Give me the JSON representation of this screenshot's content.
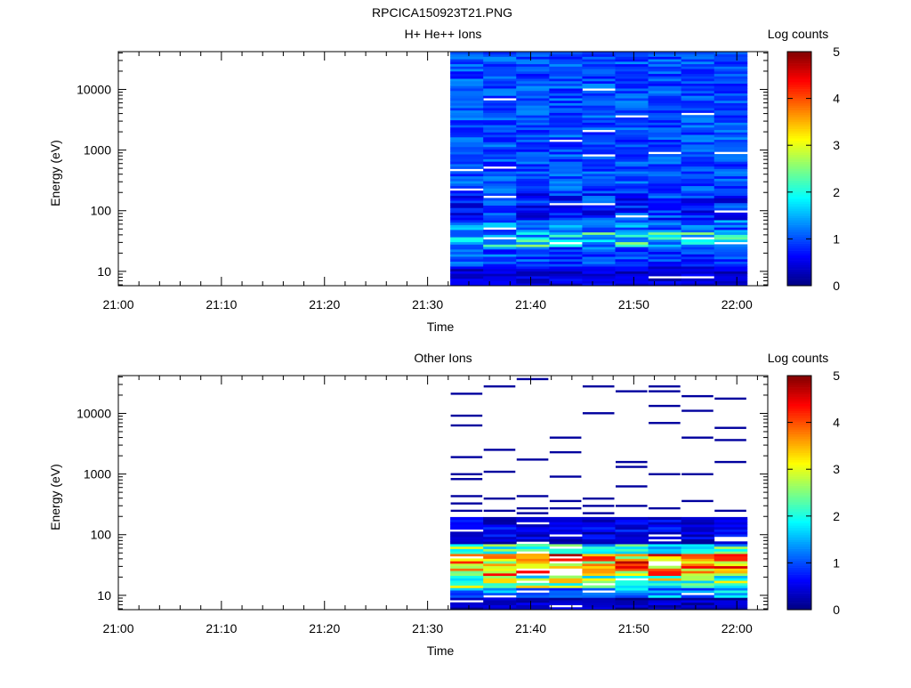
{
  "figure": {
    "title": "RPCICA150923T21.PNG"
  },
  "colors": {
    "axis": "#000000",
    "missing": "#ffffff"
  },
  "chart_data": [
    {
      "type": "heatmap",
      "id": "top",
      "title": "H+ He++ Ions",
      "xlabel": "Time",
      "ylabel": "Energy (eV)",
      "x_ticks": [
        "21:00",
        "21:10",
        "21:20",
        "21:30",
        "21:40",
        "21:50",
        "22:00"
      ],
      "x_tick_minutes": [
        0,
        10,
        20,
        30,
        40,
        50,
        60
      ],
      "xlim_minutes": [
        0,
        63
      ],
      "y_scale": "log",
      "ylim": [
        5.8,
        42000
      ],
      "y_ticks": [
        10,
        100,
        1000,
        10000
      ],
      "y_tick_labels": [
        "10",
        "100",
        "1000",
        "10000"
      ],
      "time_bins_minutes": [
        32.2,
        35.4,
        38.6,
        41.8,
        45.0,
        48.2,
        51.4,
        54.6,
        57.8,
        61.0
      ],
      "colorbar": {
        "label": "Log counts",
        "range": [
          0,
          5
        ],
        "ticks": [
          "0",
          "1",
          "2",
          "3",
          "4",
          "5"
        ]
      },
      "profile": [
        {
          "e_max": 12,
          "mean": 0.45,
          "spread": 0.3
        },
        {
          "e_max": 25,
          "mean": 1.0,
          "spread": 0.45
        },
        {
          "e_max": 45,
          "mean": 1.7,
          "spread": 0.9
        },
        {
          "e_max": 70,
          "mean": 1.2,
          "spread": 0.5
        },
        {
          "e_max": 200,
          "mean": 0.8,
          "spread": 0.5
        },
        {
          "e_max": 50000,
          "mean": 1.0,
          "spread": 0.35
        }
      ],
      "missing_fraction": 0.01,
      "missing_cells": [
        [
          0,
          216
        ],
        [
          3,
          29
        ],
        [
          4,
          850
        ],
        [
          4,
          130
        ],
        [
          5,
          78
        ],
        [
          7,
          34
        ],
        [
          8,
          100
        ],
        [
          6,
          8
        ],
        [
          7,
          8
        ]
      ]
    },
    {
      "type": "heatmap",
      "id": "bottom",
      "title": "Other Ions",
      "xlabel": "Time",
      "ylabel": "Energy (eV)",
      "x_ticks": [
        "21:00",
        "21:10",
        "21:20",
        "21:30",
        "21:40",
        "21:50",
        "22:00"
      ],
      "x_tick_minutes": [
        0,
        10,
        20,
        30,
        40,
        50,
        60
      ],
      "xlim_minutes": [
        0,
        63
      ],
      "y_scale": "log",
      "ylim": [
        5.8,
        42000
      ],
      "y_ticks": [
        10,
        100,
        1000,
        10000
      ],
      "y_tick_labels": [
        "10",
        "100",
        "1000",
        "10000"
      ],
      "time_bins_minutes": [
        32.2,
        35.4,
        38.6,
        41.8,
        45.0,
        48.2,
        51.4,
        54.6,
        57.8,
        61.0
      ],
      "colorbar": {
        "label": "Log counts",
        "range": [
          0,
          5
        ],
        "ticks": [
          "0",
          "1",
          "2",
          "3",
          "4",
          "5"
        ]
      },
      "profile": [
        {
          "e_max": 9,
          "mean": 0.3,
          "spread": 0.3
        },
        {
          "e_max": 13,
          "mean": 1.4,
          "spread": 0.7
        },
        {
          "e_max": 22,
          "mean": 2.5,
          "spread": 1.0
        },
        {
          "e_max": 50,
          "mean": 3.6,
          "spread": 1.2
        },
        {
          "e_max": 70,
          "mean": 2.2,
          "spread": 1.0
        },
        {
          "e_max": 200,
          "mean": 0.5,
          "spread": 0.4
        }
      ],
      "missing_fraction": 0.08,
      "sparse": {
        "e_from": 200,
        "e_to": 42000,
        "lines": [
          [
            0,
            21000
          ],
          [
            0,
            8800
          ],
          [
            0,
            6400
          ],
          [
            0,
            1900
          ],
          [
            0,
            1000
          ],
          [
            0,
            820
          ],
          [
            0,
            430
          ],
          [
            0,
            330
          ],
          [
            0,
            250
          ],
          [
            1,
            27000
          ],
          [
            1,
            2400
          ],
          [
            1,
            1100
          ],
          [
            1,
            410
          ],
          [
            1,
            240
          ],
          [
            2,
            38000
          ],
          [
            2,
            1800
          ],
          [
            2,
            430
          ],
          [
            2,
            280
          ],
          [
            2,
            230
          ],
          [
            3,
            3900
          ],
          [
            3,
            2200
          ],
          [
            3,
            940
          ],
          [
            3,
            360
          ],
          [
            3,
            270
          ],
          [
            4,
            29000
          ],
          [
            4,
            10000
          ],
          [
            4,
            400
          ],
          [
            4,
            300
          ],
          [
            4,
            220
          ],
          [
            5,
            23000
          ],
          [
            5,
            1600
          ],
          [
            5,
            1350
          ],
          [
            5,
            620
          ],
          [
            5,
            310
          ],
          [
            6,
            27000
          ],
          [
            6,
            23000
          ],
          [
            6,
            13000
          ],
          [
            6,
            7000
          ],
          [
            6,
            950
          ],
          [
            6,
            260
          ],
          [
            7,
            19000
          ],
          [
            7,
            10500
          ],
          [
            7,
            3900
          ],
          [
            7,
            1000
          ],
          [
            7,
            350
          ],
          [
            8,
            17000
          ],
          [
            8,
            5900
          ],
          [
            8,
            3700
          ],
          [
            8,
            1500
          ],
          [
            8,
            250
          ]
        ],
        "level": 0.15
      }
    }
  ]
}
